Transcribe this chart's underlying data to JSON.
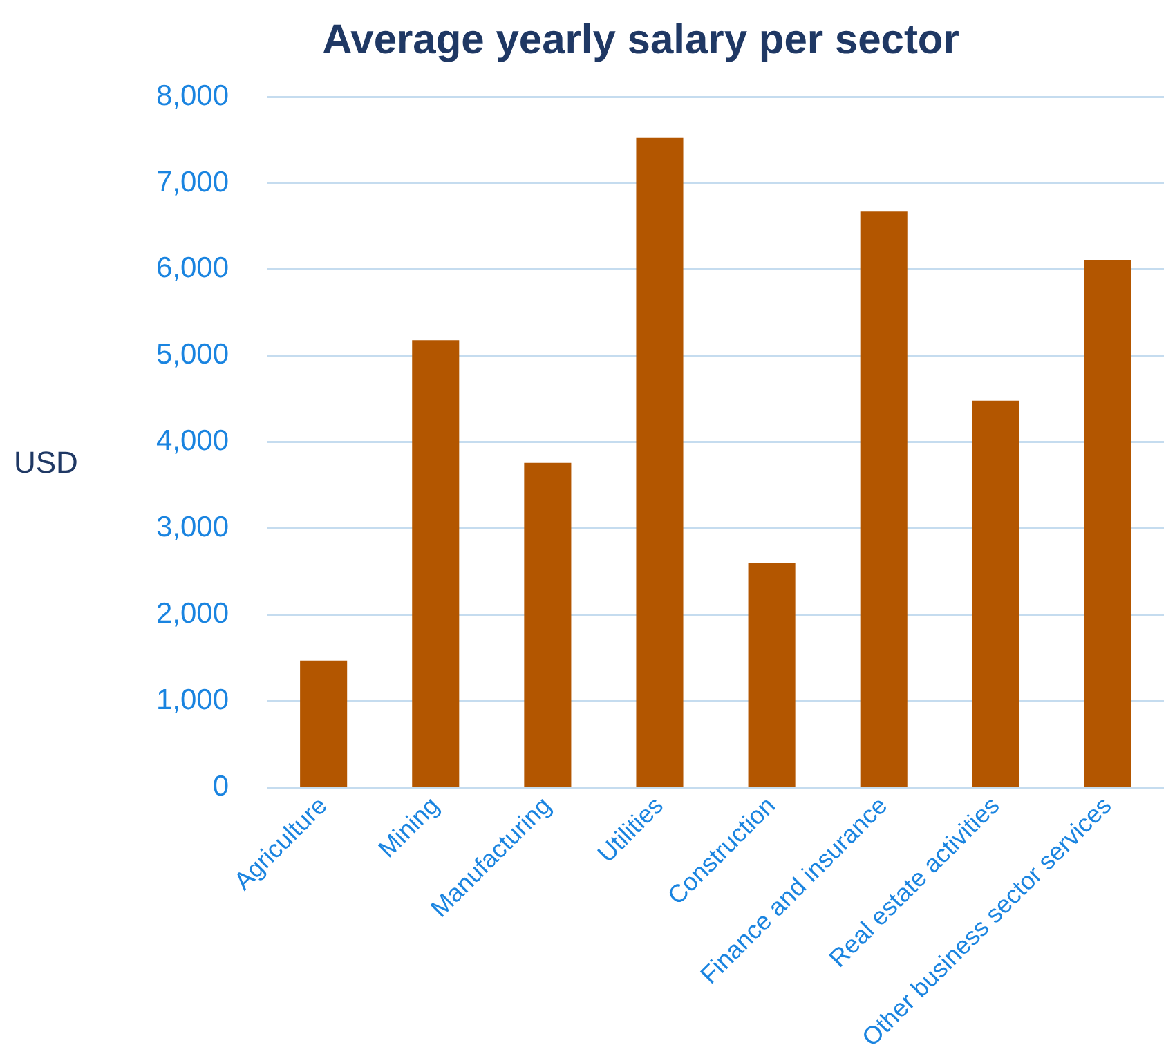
{
  "chart_data": {
    "type": "bar",
    "title": "Average yearly salary per sector",
    "ylabel": "USD",
    "categories": [
      "Agriculture",
      "Mining",
      "Manufacturing",
      "Utilities",
      "Construction",
      "Finance and insurance",
      "Real estate activities",
      "Other business sector services"
    ],
    "values": [
      1470,
      5180,
      3760,
      7530,
      2600,
      6670,
      4480,
      6110
    ],
    "color": "#b35600",
    "ylim": [
      0,
      8000
    ],
    "yticks": [
      0,
      {
        "value": 1000,
        "label": "1,000"
      },
      {
        "value": 2000,
        "label": "2,000"
      },
      {
        "value": 3000,
        "label": "3,000"
      },
      {
        "value": 4000,
        "label": "4,000"
      },
      {
        "value": 5000,
        "label": "5,000"
      },
      {
        "value": 6000,
        "label": "6,000"
      },
      {
        "value": 7000,
        "label": "7,000"
      },
      {
        "value": 8000,
        "label": "8,000"
      }
    ],
    "grid": "y"
  }
}
